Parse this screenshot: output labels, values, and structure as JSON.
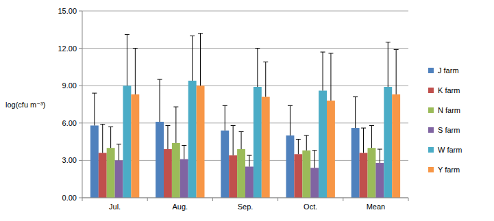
{
  "chart_data": {
    "type": "bar",
    "y_label": "log(cfu m⁻³)",
    "categories": [
      "Jul.",
      "Aug.",
      "Sep.",
      "Oct.",
      "Mean"
    ],
    "series": [
      {
        "name": "J farm",
        "color": "#4f81bd",
        "values": [
          5.8,
          6.1,
          5.4,
          5.0,
          5.6
        ],
        "errors": [
          2.6,
          3.4,
          2.0,
          2.4,
          2.5
        ]
      },
      {
        "name": "K farm",
        "color": "#c0504d",
        "values": [
          3.6,
          3.9,
          3.4,
          3.5,
          3.6
        ],
        "errors": [
          2.3,
          1.9,
          2.4,
          1.2,
          2.0
        ]
      },
      {
        "name": "N farm",
        "color": "#9bbb59",
        "values": [
          4.0,
          4.4,
          3.9,
          3.8,
          4.0
        ],
        "errors": [
          1.7,
          2.9,
          1.4,
          1.2,
          1.8
        ]
      },
      {
        "name": "S farm",
        "color": "#8064a2",
        "values": [
          3.0,
          3.1,
          2.5,
          2.4,
          2.8
        ],
        "errors": [
          1.3,
          1.1,
          0.9,
          1.4,
          1.1
        ]
      },
      {
        "name": "W farm",
        "color": "#4bacc6",
        "values": [
          9.0,
          9.4,
          8.9,
          8.6,
          8.9
        ],
        "errors": [
          4.1,
          3.6,
          3.1,
          3.1,
          3.6
        ]
      },
      {
        "name": "Y farm",
        "color": "#f79646",
        "values": [
          8.3,
          9.0,
          8.1,
          7.8,
          8.3
        ],
        "errors": [
          3.7,
          4.2,
          2.8,
          3.8,
          3.6
        ]
      }
    ],
    "ylim": [
      0,
      15
    ],
    "yticks": [
      {
        "value": 0,
        "label": "0.00"
      },
      {
        "value": 3,
        "label": "3.00"
      },
      {
        "value": 6,
        "label": "6.00"
      },
      {
        "value": 9,
        "label": "9.00"
      },
      {
        "value": 12,
        "label": "12.00"
      },
      {
        "value": 15,
        "label": "15.00"
      }
    ],
    "grid": true,
    "legend": "right"
  }
}
